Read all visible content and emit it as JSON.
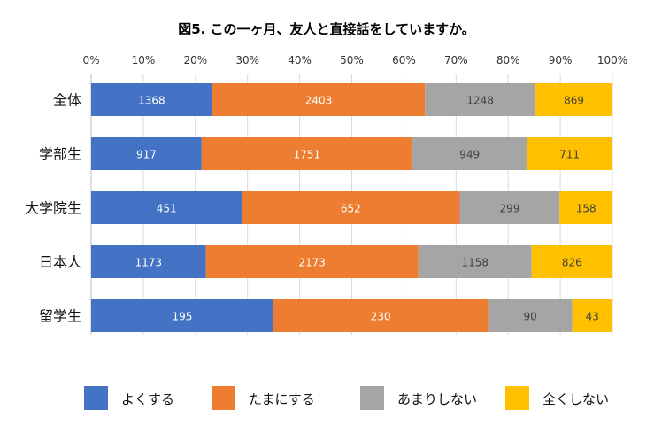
{
  "chart_data": {
    "type": "bar",
    "orientation": "horizontal",
    "stacked": "percent",
    "title": "図5. この一ヶ月、友人と直接話をしていますか。",
    "x_ticks": [
      "0%",
      "10%",
      "20%",
      "30%",
      "40%",
      "50%",
      "60%",
      "70%",
      "80%",
      "90%",
      "100%"
    ],
    "xlim": [
      0,
      100
    ],
    "categories": [
      "全体",
      "学部生",
      "大学院生",
      "日本人",
      "留学生"
    ],
    "series": [
      {
        "name": "よくする",
        "color": "#4472C4",
        "values": [
          1368,
          917,
          451,
          1173,
          195
        ]
      },
      {
        "name": "たまにする",
        "color": "#ED7D31",
        "values": [
          2403,
          1751,
          652,
          2173,
          230
        ]
      },
      {
        "name": "あまりしない",
        "color": "#A5A5A5",
        "values": [
          1248,
          949,
          299,
          1158,
          90
        ]
      },
      {
        "name": "全くしない",
        "color": "#FFC000",
        "values": [
          869,
          711,
          158,
          826,
          43
        ]
      }
    ],
    "grid": true,
    "legend_position": "bottom"
  }
}
